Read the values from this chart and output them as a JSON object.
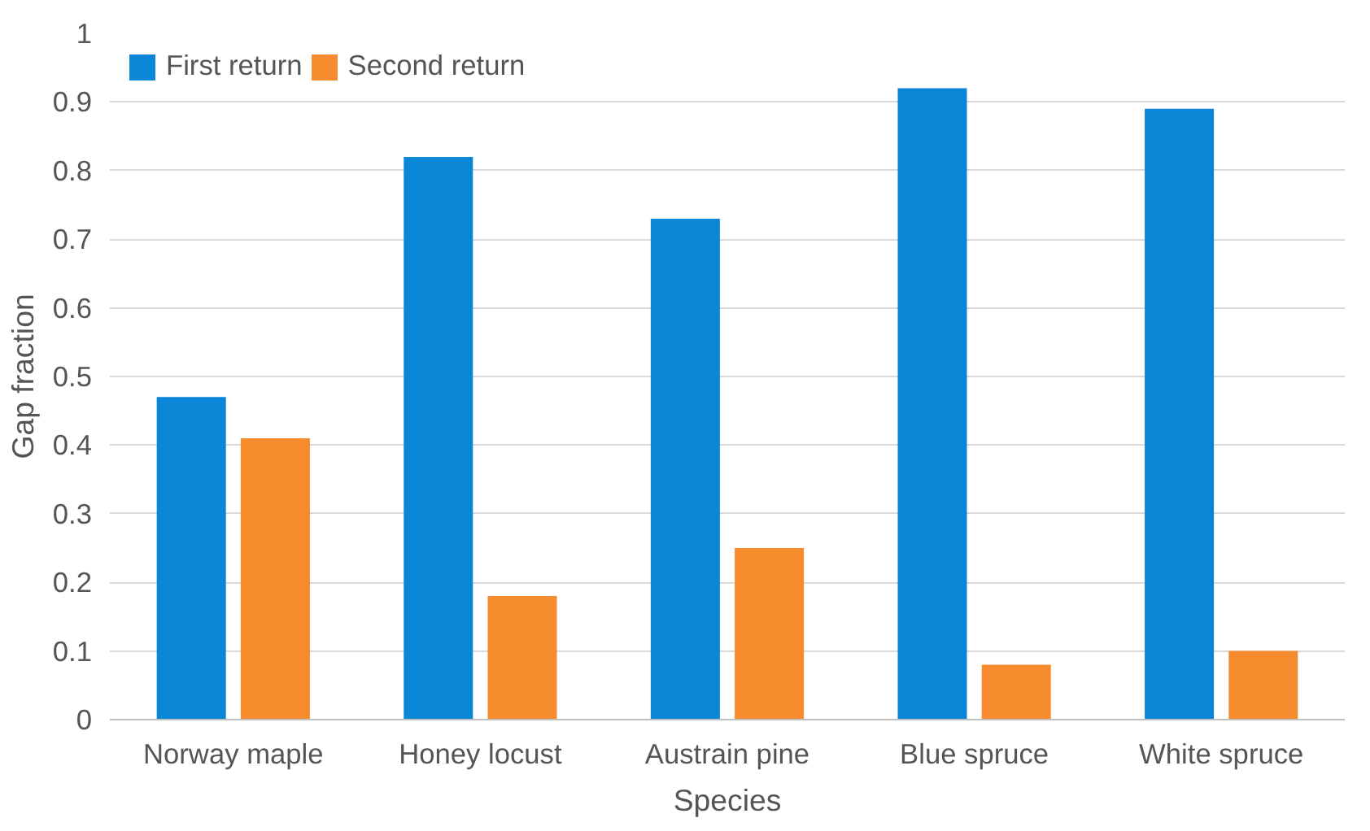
{
  "chart_data": {
    "type": "bar",
    "xlabel": "Species",
    "ylabel": "Gap fraction",
    "categories": [
      "Norway maple",
      "Honey locust",
      "Austrain pine",
      "Blue spruce",
      "White spruce"
    ],
    "series": [
      {
        "name": "First return",
        "color": "#0a86d6",
        "values": [
          0.47,
          0.82,
          0.73,
          0.92,
          0.89
        ]
      },
      {
        "name": "Second return",
        "color": "#f68b2e",
        "values": [
          0.41,
          0.18,
          0.25,
          0.08,
          0.1
        ]
      }
    ],
    "ylim": [
      0,
      1
    ],
    "yticks": [
      0,
      0.1,
      0.2,
      0.3,
      0.4,
      0.5,
      0.6,
      0.7,
      0.8,
      0.9,
      1
    ],
    "grid": "y",
    "legend": "top left"
  }
}
